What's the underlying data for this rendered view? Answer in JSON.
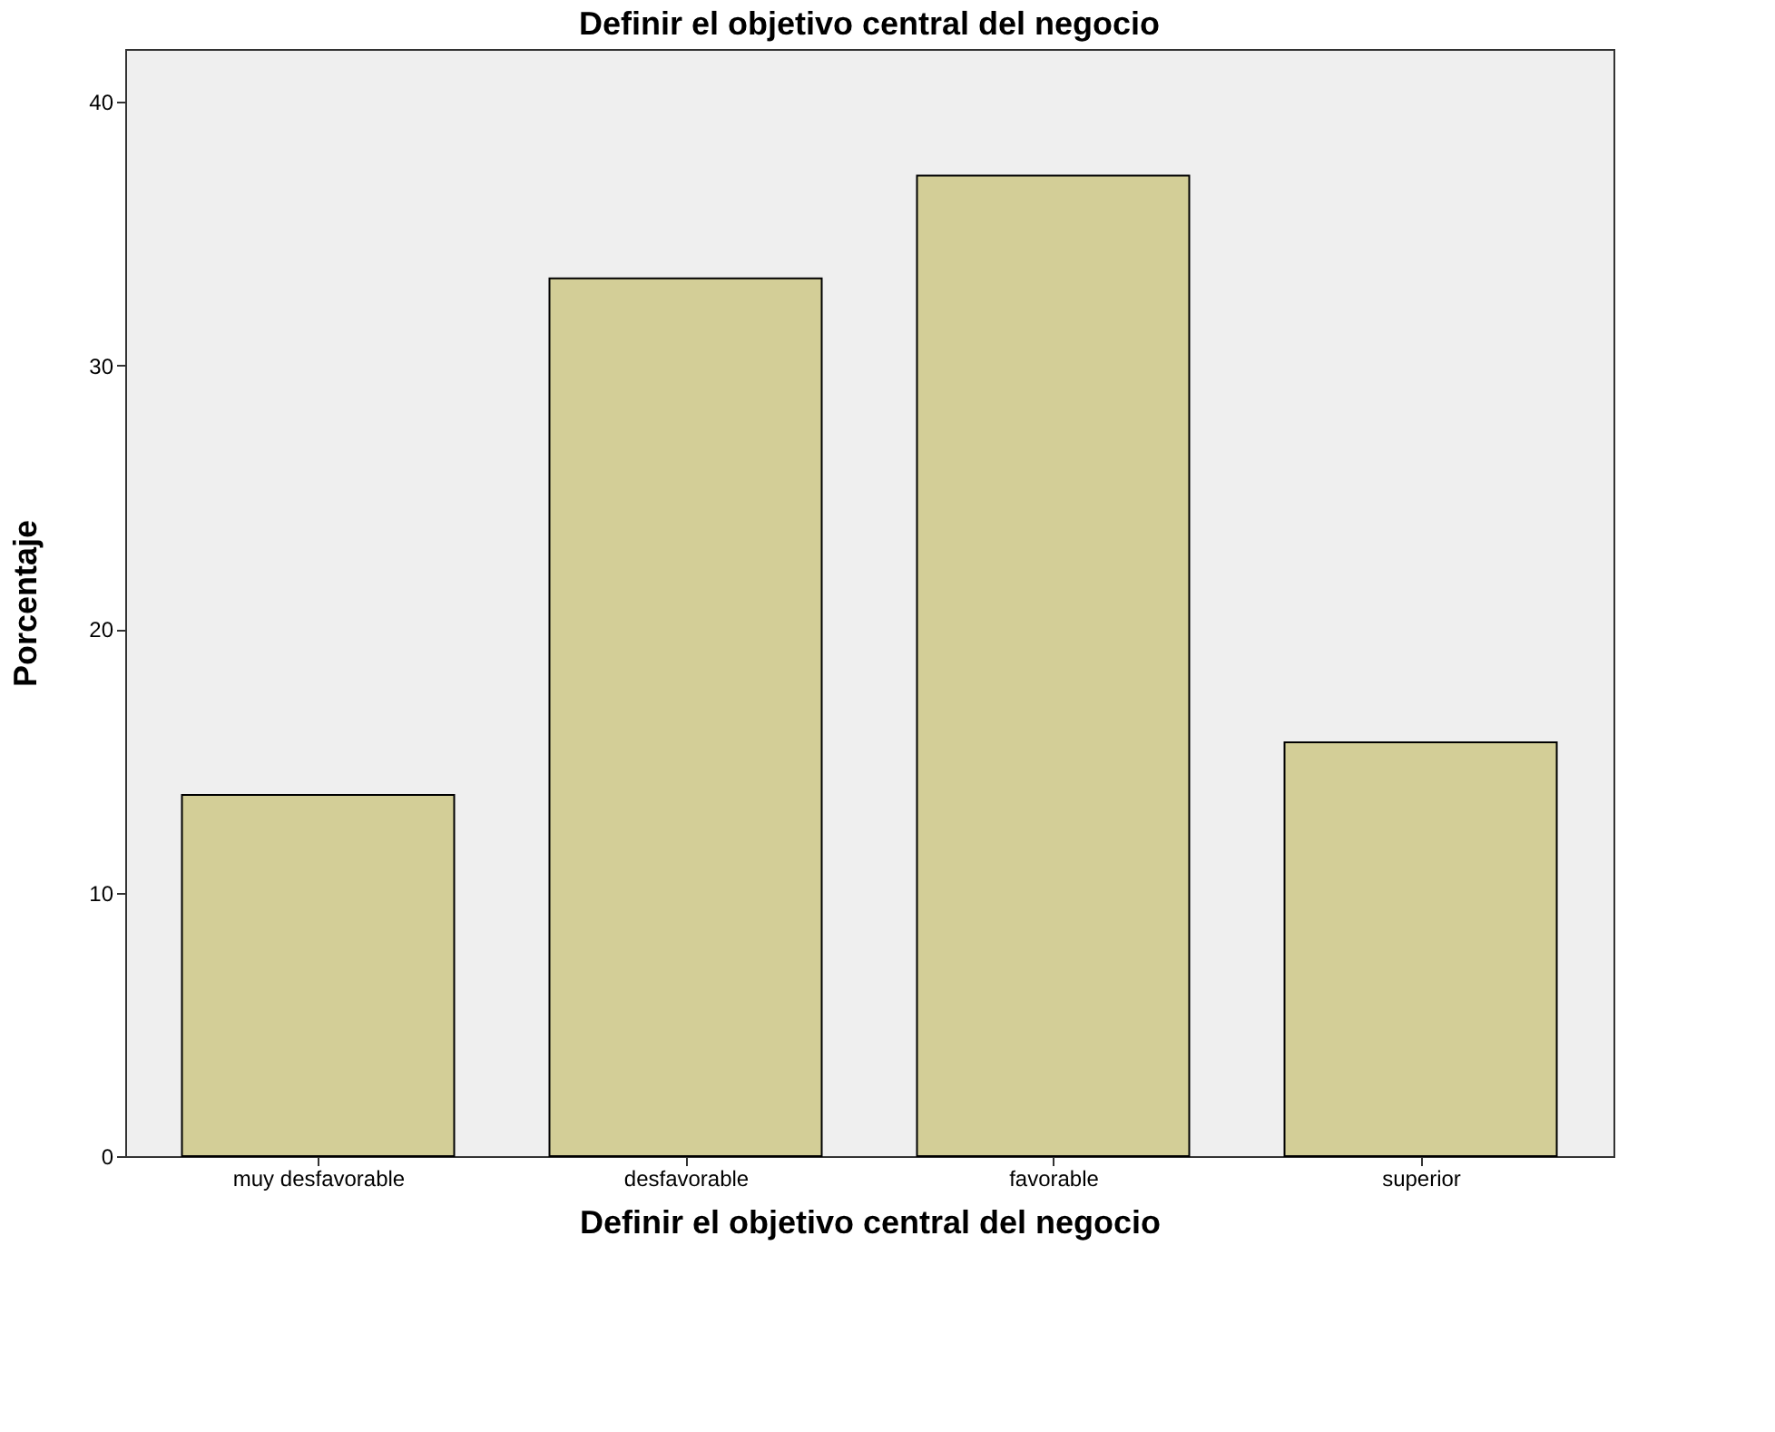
{
  "chart_data": {
    "type": "bar",
    "title": "Definir el objetivo central del negocio",
    "xlabel": "Definir el objetivo central del negocio",
    "ylabel": "Porcentaje",
    "categories": [
      "muy desfavorable",
      "desfavorable",
      "favorable",
      "superior"
    ],
    "values": [
      13.7,
      33.3,
      37.2,
      15.7
    ],
    "color": "#d3ce97",
    "ylim": [
      0,
      42
    ],
    "yticks": [
      0,
      10,
      20,
      30,
      40
    ],
    "grid": false
  }
}
